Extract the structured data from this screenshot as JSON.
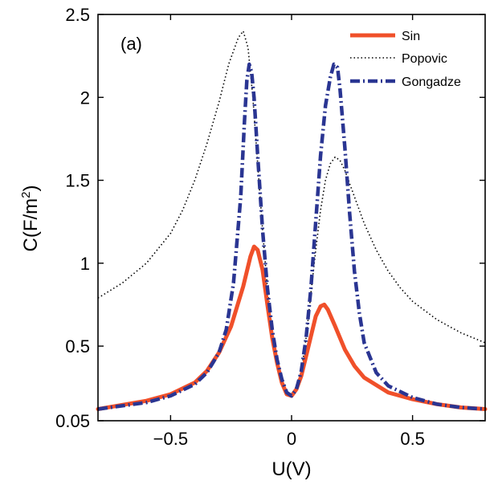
{
  "chart_data": {
    "type": "line",
    "panel_label": "(a)",
    "xlabel": "U(V)",
    "ylabel_prefix": "C(F/m",
    "ylabel_sup": "2",
    "ylabel_suffix": ")",
    "xlim": [
      -0.8,
      0.8
    ],
    "ylim": [
      0.05,
      2.5
    ],
    "xticks": [
      -0.5,
      0,
      0.5
    ],
    "xtick_labels": [
      "−0.5",
      "0",
      "0.5"
    ],
    "yticks": [
      0.05,
      0.5,
      1,
      1.5,
      2,
      2.5
    ],
    "ytick_labels": [
      "0.05",
      "0.5",
      "1",
      "1.5",
      "2",
      "2.5"
    ],
    "grid": false,
    "legend_position": "top-right",
    "series": [
      {
        "name": "Sin",
        "color": "#f0502a",
        "style": "solid",
        "points": [
          [
            -0.8,
            0.12
          ],
          [
            -0.6,
            0.17
          ],
          [
            -0.5,
            0.21
          ],
          [
            -0.4,
            0.28
          ],
          [
            -0.35,
            0.35
          ],
          [
            -0.3,
            0.46
          ],
          [
            -0.25,
            0.62
          ],
          [
            -0.2,
            0.86
          ],
          [
            -0.17,
            1.04
          ],
          [
            -0.155,
            1.1
          ],
          [
            -0.14,
            1.08
          ],
          [
            -0.12,
            0.96
          ],
          [
            -0.1,
            0.75
          ],
          [
            -0.08,
            0.55
          ],
          [
            -0.06,
            0.4
          ],
          [
            -0.04,
            0.28
          ],
          [
            -0.02,
            0.21
          ],
          [
            0,
            0.2
          ],
          [
            0.02,
            0.24
          ],
          [
            0.04,
            0.32
          ],
          [
            0.06,
            0.44
          ],
          [
            0.08,
            0.56
          ],
          [
            0.1,
            0.68
          ],
          [
            0.12,
            0.74
          ],
          [
            0.135,
            0.75
          ],
          [
            0.15,
            0.72
          ],
          [
            0.18,
            0.62
          ],
          [
            0.22,
            0.48
          ],
          [
            0.26,
            0.38
          ],
          [
            0.3,
            0.31
          ],
          [
            0.4,
            0.22
          ],
          [
            0.5,
            0.18
          ],
          [
            0.6,
            0.15
          ],
          [
            0.7,
            0.13
          ],
          [
            0.8,
            0.12
          ]
        ]
      },
      {
        "name": "Popovic",
        "color": "#000000",
        "style": "dotted",
        "points": [
          [
            -0.8,
            0.79
          ],
          [
            -0.7,
            0.88
          ],
          [
            -0.6,
            1.0
          ],
          [
            -0.5,
            1.18
          ],
          [
            -0.45,
            1.32
          ],
          [
            -0.4,
            1.5
          ],
          [
            -0.35,
            1.72
          ],
          [
            -0.3,
            1.97
          ],
          [
            -0.26,
            2.2
          ],
          [
            -0.22,
            2.36
          ],
          [
            -0.2,
            2.4
          ],
          [
            -0.18,
            2.3
          ],
          [
            -0.16,
            2.0
          ],
          [
            -0.14,
            1.6
          ],
          [
            -0.12,
            1.2
          ],
          [
            -0.1,
            0.85
          ],
          [
            -0.08,
            0.6
          ],
          [
            -0.06,
            0.42
          ],
          [
            -0.04,
            0.3
          ],
          [
            -0.02,
            0.22
          ],
          [
            0,
            0.2
          ],
          [
            0.02,
            0.24
          ],
          [
            0.04,
            0.35
          ],
          [
            0.06,
            0.55
          ],
          [
            0.08,
            0.82
          ],
          [
            0.1,
            1.08
          ],
          [
            0.12,
            1.32
          ],
          [
            0.14,
            1.5
          ],
          [
            0.16,
            1.6
          ],
          [
            0.18,
            1.64
          ],
          [
            0.2,
            1.62
          ],
          [
            0.22,
            1.56
          ],
          [
            0.25,
            1.44
          ],
          [
            0.3,
            1.24
          ],
          [
            0.35,
            1.08
          ],
          [
            0.4,
            0.95
          ],
          [
            0.45,
            0.85
          ],
          [
            0.5,
            0.77
          ],
          [
            0.6,
            0.66
          ],
          [
            0.7,
            0.58
          ],
          [
            0.8,
            0.52
          ]
        ]
      },
      {
        "name": "Gongadze",
        "color": "#2a3592",
        "style": "dashdot",
        "points": [
          [
            -0.8,
            0.12
          ],
          [
            -0.6,
            0.16
          ],
          [
            -0.5,
            0.2
          ],
          [
            -0.4,
            0.27
          ],
          [
            -0.35,
            0.34
          ],
          [
            -0.3,
            0.46
          ],
          [
            -0.27,
            0.6
          ],
          [
            -0.24,
            0.88
          ],
          [
            -0.21,
            1.4
          ],
          [
            -0.195,
            1.85
          ],
          [
            -0.185,
            2.1
          ],
          [
            -0.175,
            2.2
          ],
          [
            -0.165,
            2.15
          ],
          [
            -0.155,
            2.0
          ],
          [
            -0.14,
            1.65
          ],
          [
            -0.12,
            1.2
          ],
          [
            -0.1,
            0.85
          ],
          [
            -0.08,
            0.6
          ],
          [
            -0.06,
            0.42
          ],
          [
            -0.04,
            0.3
          ],
          [
            -0.02,
            0.22
          ],
          [
            0,
            0.2
          ],
          [
            0.02,
            0.24
          ],
          [
            0.04,
            0.35
          ],
          [
            0.06,
            0.55
          ],
          [
            0.08,
            0.85
          ],
          [
            0.1,
            1.25
          ],
          [
            0.12,
            1.65
          ],
          [
            0.14,
            1.95
          ],
          [
            0.16,
            2.12
          ],
          [
            0.175,
            2.2
          ],
          [
            0.19,
            2.18
          ],
          [
            0.2,
            2.05
          ],
          [
            0.22,
            1.7
          ],
          [
            0.24,
            1.3
          ],
          [
            0.26,
            0.95
          ],
          [
            0.28,
            0.7
          ],
          [
            0.3,
            0.52
          ],
          [
            0.35,
            0.34
          ],
          [
            0.4,
            0.26
          ],
          [
            0.5,
            0.19
          ],
          [
            0.6,
            0.15
          ],
          [
            0.7,
            0.13
          ],
          [
            0.8,
            0.12
          ]
        ]
      }
    ]
  }
}
